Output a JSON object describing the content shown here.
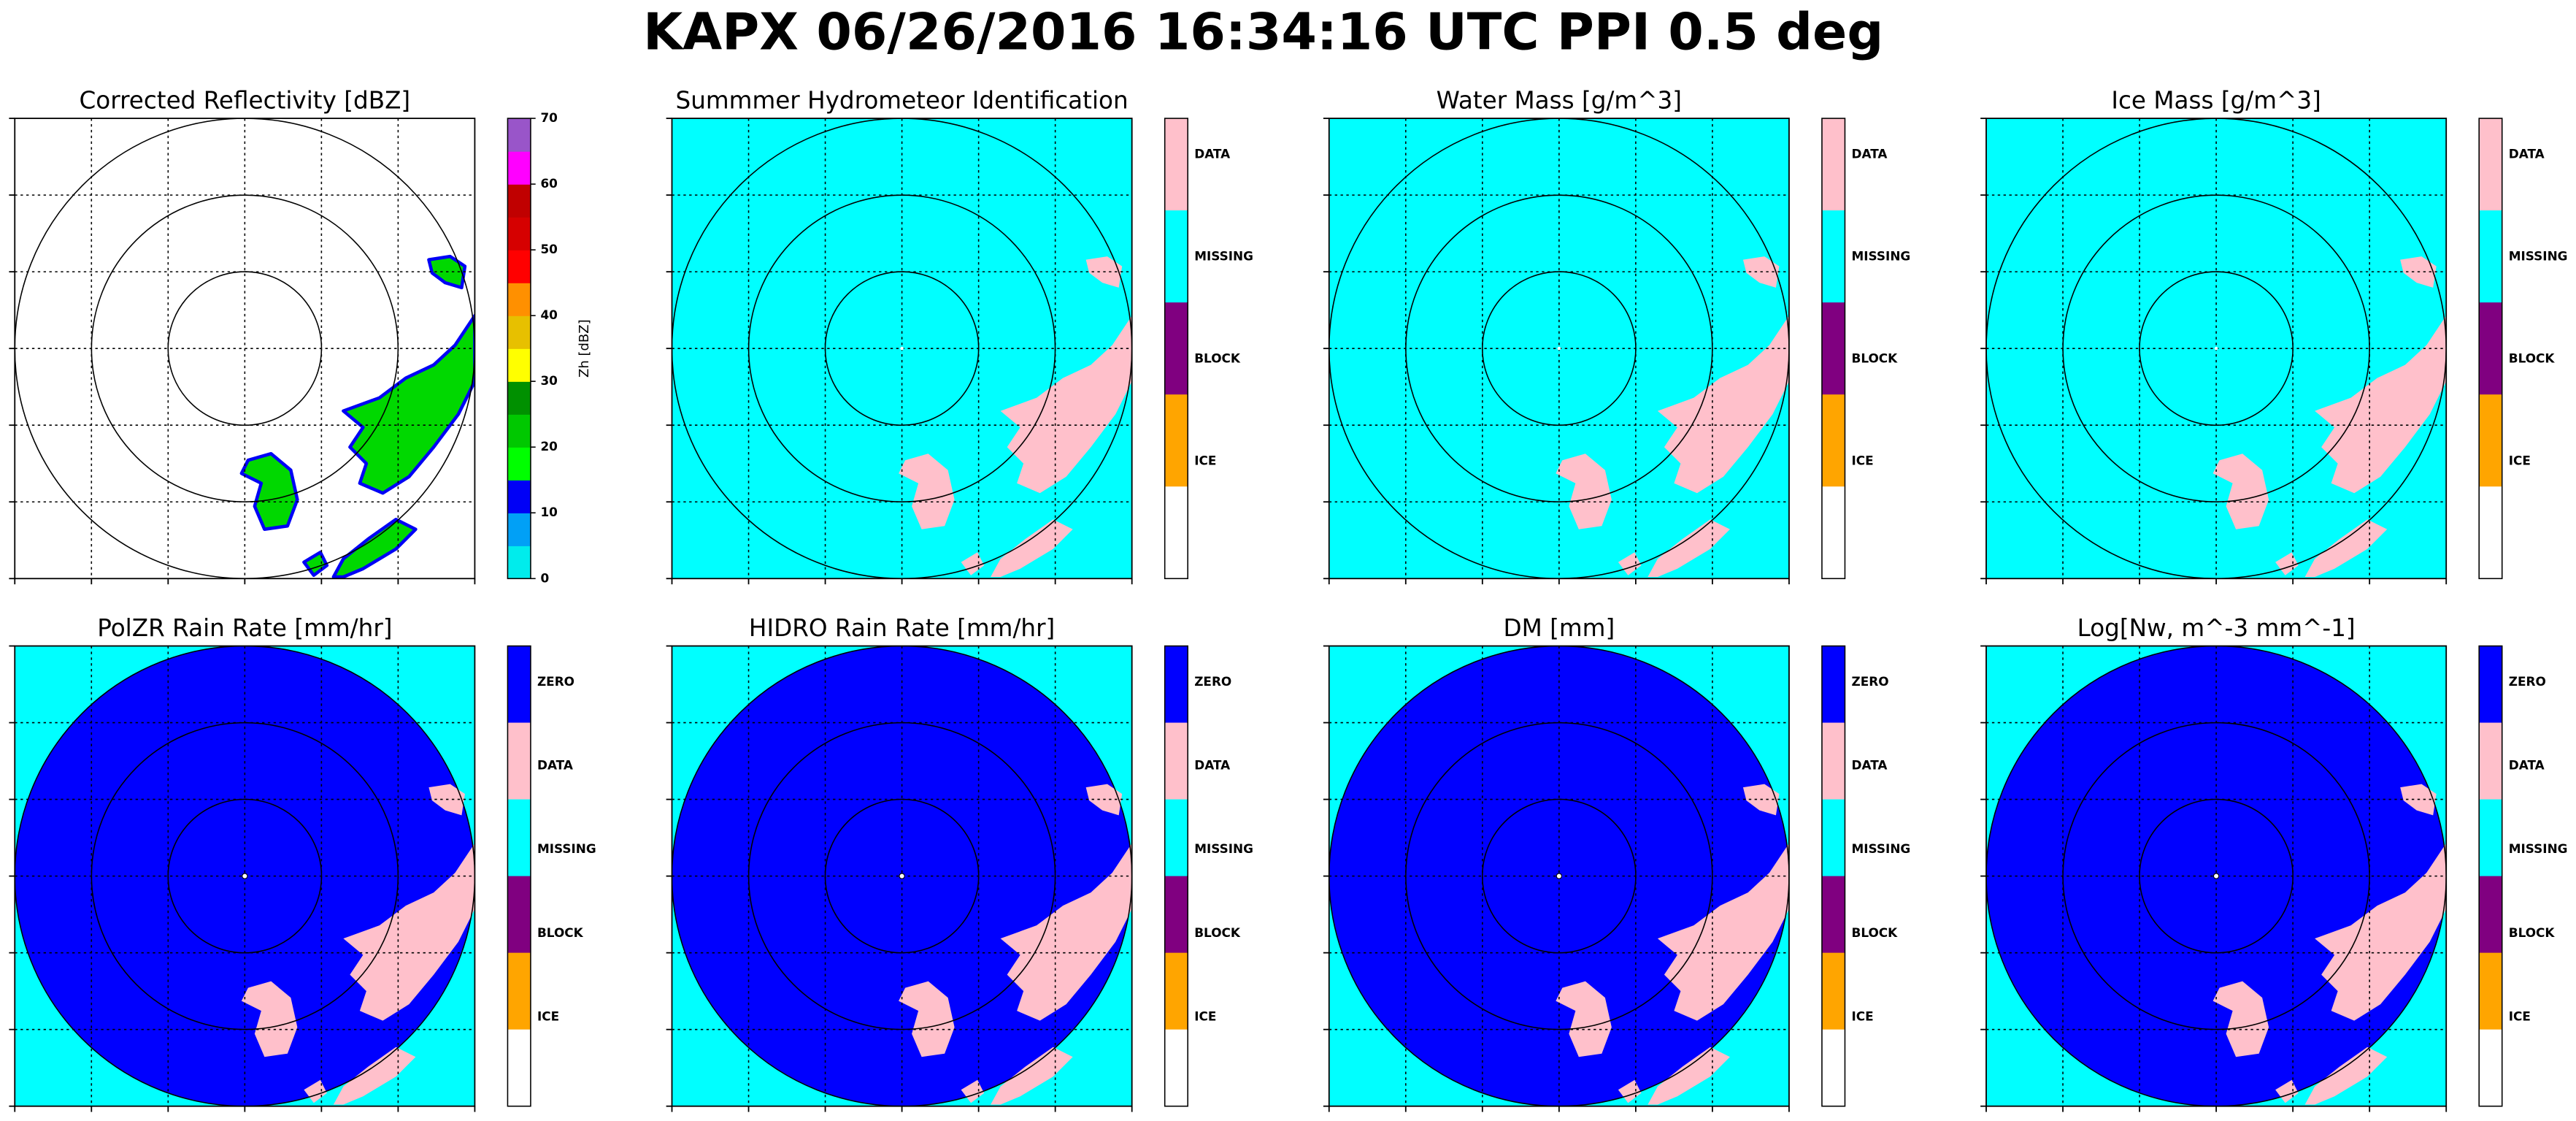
{
  "title": "KAPX 06/26/2016 16:34:16 UTC PPI 0.5 deg",
  "panels": [
    {
      "title": "Corrected Reflectivity [dBZ]",
      "background": "#ffffff",
      "echo": {
        "fill": "#00d800",
        "stroke": "#0000f6"
      },
      "colorbar": {
        "label": "Zh [dBZ]",
        "lim": [
          0,
          70
        ],
        "ticks": [
          0,
          10,
          20,
          30,
          40,
          50,
          60,
          70
        ],
        "colors": [
          "#00ecec",
          "#01a0f6",
          "#0000f6",
          "#00ff00",
          "#00c800",
          "#009000",
          "#ffff00",
          "#e7c000",
          "#ff9000",
          "#ff0000",
          "#d60000",
          "#c00000",
          "#ff00ff",
          "#9955c9"
        ]
      }
    },
    {
      "title": "Summmer Hydrometeor Identification",
      "background": "#00ffff",
      "echo": {
        "fill": "#ffc0cb"
      },
      "colorbar": {
        "segments": [
          {
            "label": "DATA",
            "color": "#ffc0cb"
          },
          {
            "label": "MISSING",
            "color": "#00ffff"
          },
          {
            "label": "BLOCK",
            "color": "#800080"
          },
          {
            "label": "ICE",
            "color": "#ffa500"
          },
          {
            "color": "#ffffff"
          }
        ]
      }
    },
    {
      "title": "Water Mass [g/m^3]",
      "background": "#00ffff",
      "echo": {
        "fill": "#ffc0cb"
      },
      "colorbar": {
        "segments": [
          {
            "label": "DATA",
            "color": "#ffc0cb"
          },
          {
            "label": "MISSING",
            "color": "#00ffff"
          },
          {
            "label": "BLOCK",
            "color": "#800080"
          },
          {
            "label": "ICE",
            "color": "#ffa500"
          },
          {
            "color": "#ffffff"
          }
        ]
      }
    },
    {
      "title": "Ice Mass [g/m^3]",
      "background": "#00ffff",
      "echo": {
        "fill": "#ffc0cb"
      },
      "colorbar": {
        "segments": [
          {
            "label": "DATA",
            "color": "#ffc0cb"
          },
          {
            "label": "MISSING",
            "color": "#00ffff"
          },
          {
            "label": "BLOCK",
            "color": "#800080"
          },
          {
            "label": "ICE",
            "color": "#ffa500"
          },
          {
            "color": "#ffffff"
          }
        ]
      }
    },
    {
      "title": "PolZR Rain Rate [mm/hr]",
      "background": "#00ffff",
      "disk": "#0000ff",
      "echo": {
        "fill": "#ffc0cb"
      },
      "colorbar": {
        "segments": [
          {
            "label": "ZERO",
            "color": "#0000ff"
          },
          {
            "label": "DATA",
            "color": "#ffc0cb"
          },
          {
            "label": "MISSING",
            "color": "#00ffff"
          },
          {
            "label": "BLOCK",
            "color": "#800080"
          },
          {
            "label": "ICE",
            "color": "#ffa500"
          },
          {
            "color": "#ffffff"
          }
        ]
      }
    },
    {
      "title": "HIDRO Rain Rate [mm/hr]",
      "background": "#00ffff",
      "disk": "#0000ff",
      "echo": {
        "fill": "#ffc0cb"
      },
      "colorbar": {
        "segments": [
          {
            "label": "ZERO",
            "color": "#0000ff"
          },
          {
            "label": "DATA",
            "color": "#ffc0cb"
          },
          {
            "label": "MISSING",
            "color": "#00ffff"
          },
          {
            "label": "BLOCK",
            "color": "#800080"
          },
          {
            "label": "ICE",
            "color": "#ffa500"
          },
          {
            "color": "#ffffff"
          }
        ]
      }
    },
    {
      "title": "DM [mm]",
      "background": "#00ffff",
      "disk": "#0000ff",
      "echo": {
        "fill": "#ffc0cb"
      },
      "colorbar": {
        "segments": [
          {
            "label": "ZERO",
            "color": "#0000ff"
          },
          {
            "label": "DATA",
            "color": "#ffc0cb"
          },
          {
            "label": "MISSING",
            "color": "#00ffff"
          },
          {
            "label": "BLOCK",
            "color": "#800080"
          },
          {
            "label": "ICE",
            "color": "#ffa500"
          },
          {
            "color": "#ffffff"
          }
        ]
      }
    },
    {
      "title": "Log[Nw, m^-3 mm^-1]",
      "background": "#00ffff",
      "disk": "#0000ff",
      "echo": {
        "fill": "#ffc0cb"
      },
      "colorbar": {
        "segments": [
          {
            "label": "ZERO",
            "color": "#0000ff"
          },
          {
            "label": "DATA",
            "color": "#ffc0cb"
          },
          {
            "label": "MISSING",
            "color": "#00ffff"
          },
          {
            "label": "BLOCK",
            "color": "#800080"
          },
          {
            "label": "ICE",
            "color": "#ffa500"
          },
          {
            "color": "#ffffff"
          }
        ]
      }
    }
  ]
}
